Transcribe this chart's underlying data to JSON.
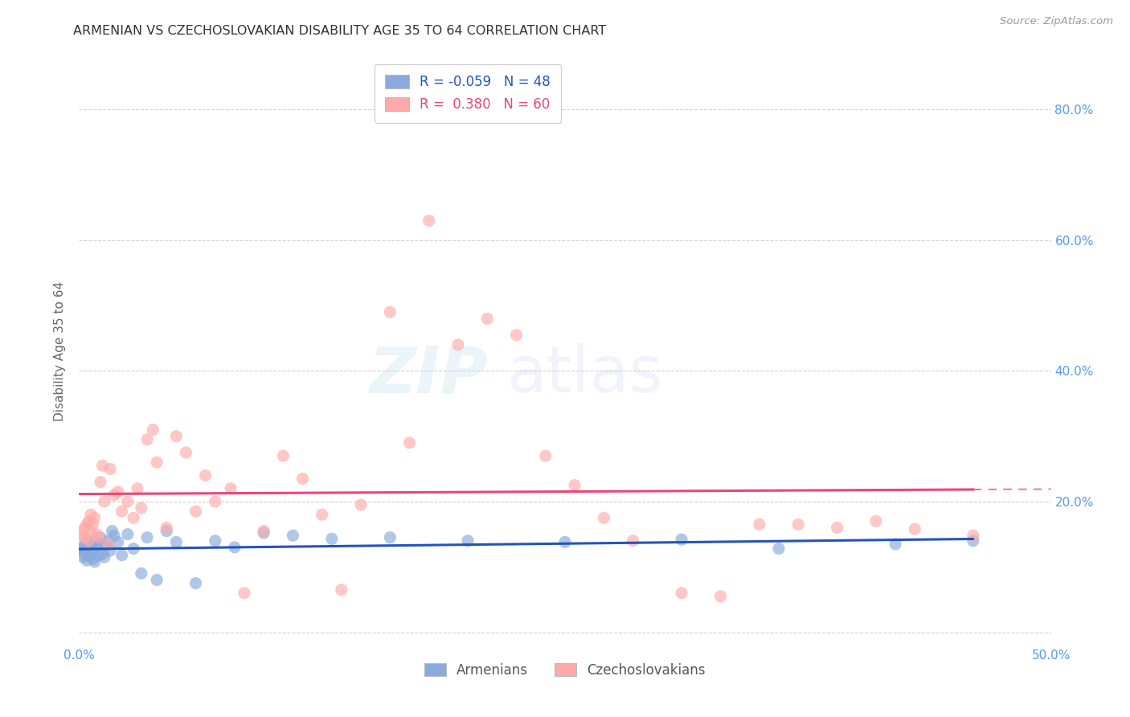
{
  "title": "ARMENIAN VS CZECHOSLOVAKIAN DISABILITY AGE 35 TO 64 CORRELATION CHART",
  "source": "Source: ZipAtlas.com",
  "ylabel": "Disability Age 35 to 64",
  "xlim": [
    0.0,
    0.5
  ],
  "ylim": [
    -0.02,
    0.88
  ],
  "xticks": [
    0.0,
    0.1,
    0.2,
    0.3,
    0.4,
    0.5
  ],
  "xticklabels": [
    "0.0%",
    "",
    "",
    "",
    "",
    "50.0%"
  ],
  "yticks": [
    0.0,
    0.2,
    0.4,
    0.6,
    0.8
  ],
  "yticklabels": [
    "",
    "20.0%",
    "40.0%",
    "60.0%",
    "80.0%"
  ],
  "armenian_R": -0.059,
  "armenian_N": 48,
  "czechoslovakian_R": 0.38,
  "czechoslovakian_N": 60,
  "armenian_color": "#88AADD",
  "czechoslovakian_color": "#FFAAAA",
  "armenian_line_color": "#2255BB",
  "czechoslovakian_line_color": "#EE4477",
  "background_color": "#FFFFFF",
  "grid_color": "#CCCCCC",
  "title_color": "#333333",
  "axis_color": "#5599EE",
  "armenian_x": [
    0.001,
    0.002,
    0.002,
    0.003,
    0.003,
    0.004,
    0.004,
    0.005,
    0.005,
    0.006,
    0.006,
    0.007,
    0.007,
    0.008,
    0.008,
    0.009,
    0.01,
    0.01,
    0.011,
    0.012,
    0.013,
    0.014,
    0.015,
    0.016,
    0.017,
    0.018,
    0.02,
    0.022,
    0.025,
    0.028,
    0.032,
    0.035,
    0.04,
    0.045,
    0.05,
    0.06,
    0.07,
    0.08,
    0.095,
    0.11,
    0.13,
    0.16,
    0.2,
    0.25,
    0.31,
    0.36,
    0.42,
    0.46
  ],
  "armenian_y": [
    0.125,
    0.13,
    0.115,
    0.12,
    0.135,
    0.128,
    0.11,
    0.118,
    0.132,
    0.122,
    0.138,
    0.112,
    0.125,
    0.108,
    0.14,
    0.13,
    0.135,
    0.118,
    0.145,
    0.12,
    0.115,
    0.132,
    0.14,
    0.125,
    0.155,
    0.148,
    0.138,
    0.118,
    0.15,
    0.128,
    0.09,
    0.145,
    0.08,
    0.155,
    0.138,
    0.075,
    0.14,
    0.13,
    0.152,
    0.148,
    0.143,
    0.145,
    0.14,
    0.138,
    0.142,
    0.128,
    0.135,
    0.14
  ],
  "czechoslovakian_x": [
    0.001,
    0.002,
    0.003,
    0.003,
    0.004,
    0.005,
    0.005,
    0.006,
    0.006,
    0.007,
    0.008,
    0.009,
    0.01,
    0.011,
    0.012,
    0.013,
    0.015,
    0.016,
    0.018,
    0.02,
    0.022,
    0.025,
    0.028,
    0.03,
    0.032,
    0.035,
    0.038,
    0.04,
    0.045,
    0.05,
    0.055,
    0.06,
    0.065,
    0.07,
    0.078,
    0.085,
    0.095,
    0.105,
    0.115,
    0.125,
    0.135,
    0.145,
    0.16,
    0.17,
    0.18,
    0.195,
    0.21,
    0.225,
    0.24,
    0.255,
    0.27,
    0.285,
    0.31,
    0.33,
    0.35,
    0.37,
    0.39,
    0.41,
    0.43,
    0.46
  ],
  "czechoslovakian_y": [
    0.148,
    0.155,
    0.16,
    0.145,
    0.165,
    0.17,
    0.14,
    0.18,
    0.155,
    0.165,
    0.175,
    0.15,
    0.145,
    0.23,
    0.255,
    0.2,
    0.135,
    0.25,
    0.21,
    0.215,
    0.185,
    0.2,
    0.175,
    0.22,
    0.19,
    0.295,
    0.31,
    0.26,
    0.16,
    0.3,
    0.275,
    0.185,
    0.24,
    0.2,
    0.22,
    0.06,
    0.155,
    0.27,
    0.235,
    0.18,
    0.065,
    0.195,
    0.49,
    0.29,
    0.63,
    0.44,
    0.48,
    0.455,
    0.27,
    0.225,
    0.175,
    0.14,
    0.06,
    0.055,
    0.165,
    0.165,
    0.16,
    0.17,
    0.158,
    0.148
  ]
}
